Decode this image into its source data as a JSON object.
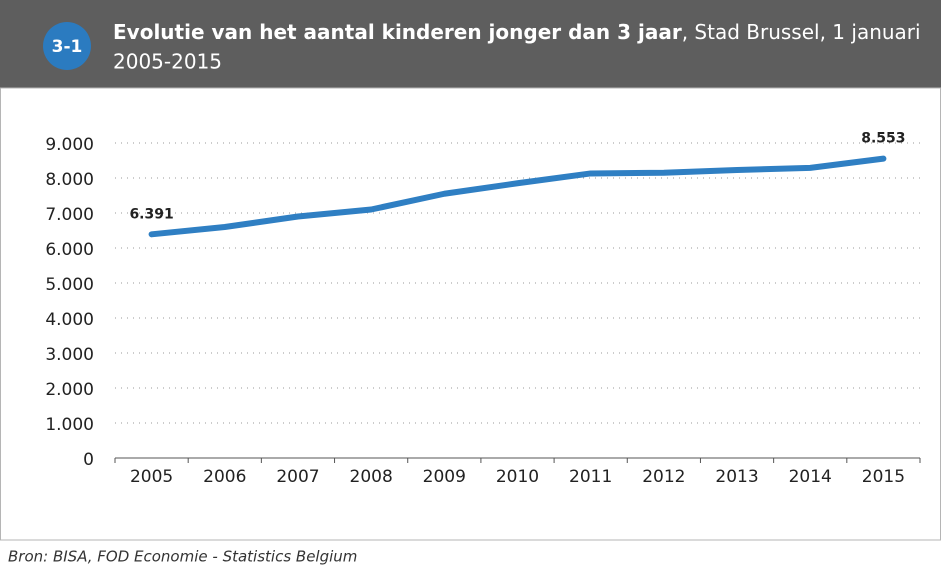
{
  "chart_data": {
    "type": "line",
    "badge": "3-1",
    "title": "Evolutie van het aantal kinderen jonger dan 3 jaar",
    "title_suffix": ", Stad Brussel, 1 januari",
    "title_line2": "2005-2015",
    "source": "Bron: BISA, FOD Economie - Statistics Belgium",
    "categories": [
      "2005",
      "2006",
      "2007",
      "2008",
      "2009",
      "2010",
      "2011",
      "2012",
      "2013",
      "2014",
      "2015"
    ],
    "values": [
      6391,
      6600,
      6900,
      7100,
      7550,
      7850,
      8130,
      8150,
      8230,
      8290,
      8553
    ],
    "value_labels": [
      "6.391",
      null,
      null,
      null,
      null,
      null,
      null,
      null,
      null,
      null,
      "8.553"
    ],
    "color": "#2f7fc3",
    "ylim": [
      0,
      9000
    ],
    "yticks": [
      0,
      {
        "value": 1000,
        "label": "1.000"
      },
      {
        "value": 2000,
        "label": "2.000"
      },
      {
        "value": 3000,
        "label": "3.000"
      },
      {
        "value": 4000,
        "label": "4.000"
      },
      {
        "value": 5000,
        "label": "5.000"
      },
      {
        "value": 6000,
        "label": "6.000"
      },
      {
        "value": 7000,
        "label": "7.000"
      },
      {
        "value": 8000,
        "label": "8.000"
      },
      {
        "value": 9000,
        "label": "9.000"
      }
    ],
    "grid": true
  }
}
